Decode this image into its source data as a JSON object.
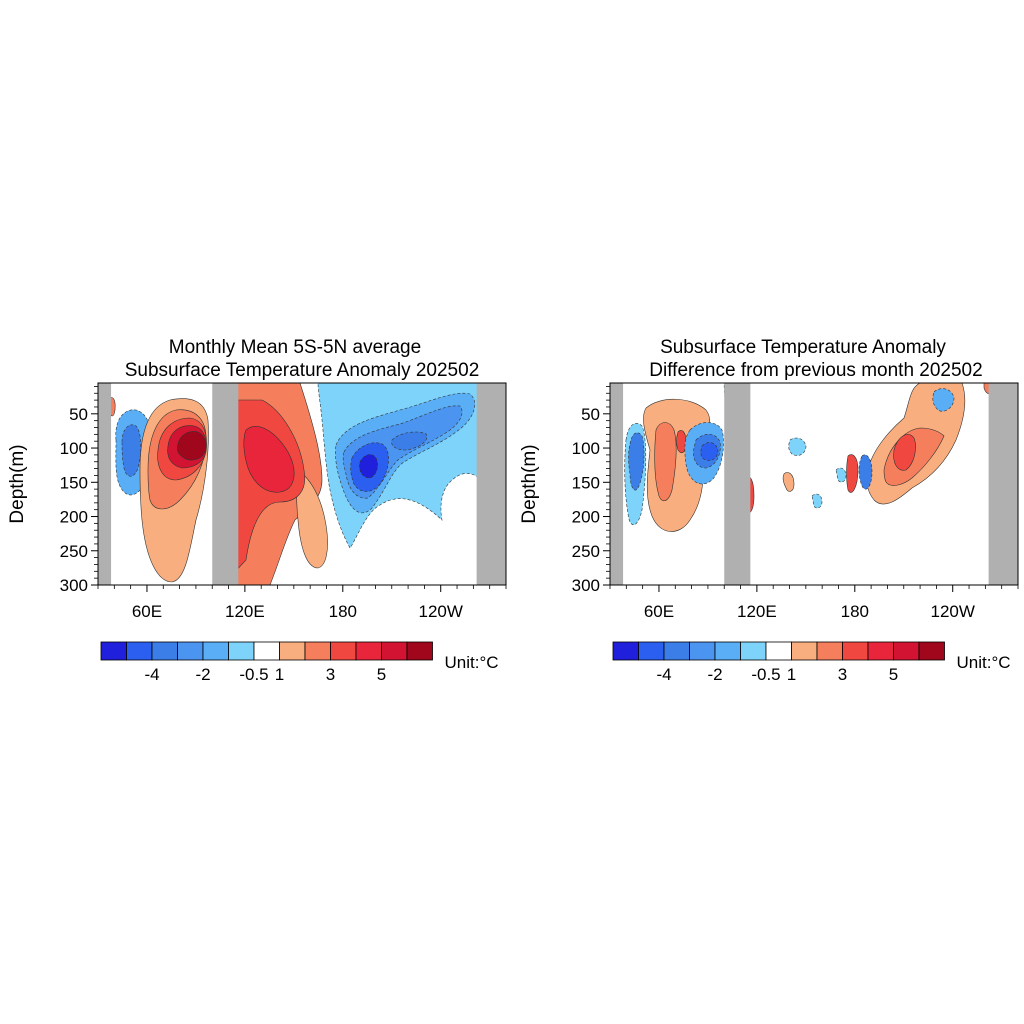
{
  "chart_data": [
    {
      "type": "heatmap",
      "title": "Monthly Mean 5S-5N average",
      "subtitle": "Subsurface Temperature Anomaly 202502",
      "xlabel": "",
      "ylabel": "Depth(m)",
      "x_ticks": [
        "60E",
        "120E",
        "180",
        "120W"
      ],
      "x_tick_values": [
        60,
        120,
        180,
        240
      ],
      "xlim": [
        30,
        280
      ],
      "y_ticks": [
        "50",
        "100",
        "150",
        "200",
        "250",
        "300"
      ],
      "y_tick_values": [
        50,
        100,
        150,
        200,
        250,
        300
      ],
      "ylim": [
        300,
        5
      ],
      "land_masks": [
        [
          30,
          38
        ],
        [
          100,
          116
        ],
        [
          262,
          280
        ]
      ],
      "features": [
        {
          "kind": "warm",
          "level": 5,
          "lon": 100,
          "depth": 105,
          "rx": 14,
          "ry": 20
        },
        {
          "kind": "warm",
          "level": 4,
          "lon": 140,
          "depth": 130,
          "rx": 14,
          "ry": 38
        },
        {
          "kind": "cool",
          "level": -4,
          "lon": 197,
          "depth": 135,
          "rx": 8,
          "ry": 30
        },
        {
          "kind": "cool",
          "level": -2,
          "lon": 57,
          "depth": 110,
          "rx": 6,
          "ry": 30
        }
      ],
      "colorbar": {
        "unit_label": "Unit:°C",
        "labels": [
          "-4",
          "-2",
          "-0.5",
          "1",
          "3",
          "5"
        ],
        "colors": [
          "#1f1fdc",
          "#2b5ff0",
          "#3c7ee8",
          "#4b94f0",
          "#5aaef5",
          "#7dd3fa",
          "#ffffff",
          "#f8ae7e",
          "#f57f5d",
          "#f04840",
          "#e8253a",
          "#d21432",
          "#a0061c"
        ]
      }
    },
    {
      "type": "heatmap",
      "title": "Subsurface Temperature Anomaly",
      "subtitle": "Difference from previous month 202502",
      "xlabel": "",
      "ylabel": "Depth(m)",
      "x_ticks": [
        "60E",
        "120E",
        "180",
        "120W"
      ],
      "x_tick_values": [
        60,
        120,
        180,
        240
      ],
      "xlim": [
        30,
        280
      ],
      "y_ticks": [
        "50",
        "100",
        "150",
        "200",
        "250",
        "300"
      ],
      "y_tick_values": [
        50,
        100,
        150,
        200,
        250,
        300
      ],
      "ylim": [
        300,
        5
      ],
      "land_masks": [
        [
          30,
          38
        ],
        [
          100,
          116
        ],
        [
          262,
          280
        ]
      ],
      "features": [
        {
          "kind": "cool",
          "level": -2,
          "lon": 47,
          "depth": 130,
          "rx": 4,
          "ry": 40
        },
        {
          "kind": "warm",
          "level": 1,
          "lon": 70,
          "depth": 120,
          "rx": 8,
          "ry": 50
        },
        {
          "kind": "cool",
          "level": -2,
          "lon": 92,
          "depth": 125,
          "rx": 8,
          "ry": 20
        },
        {
          "kind": "warm",
          "level": 3,
          "lon": 225,
          "depth": 110,
          "rx": 8,
          "ry": 25
        }
      ],
      "colorbar": {
        "unit_label": "Unit:°C",
        "labels": [
          "-4",
          "-2",
          "-0.5",
          "1",
          "3",
          "5"
        ],
        "colors": [
          "#1f1fdc",
          "#2b5ff0",
          "#3c7ee8",
          "#4b94f0",
          "#5aaef5",
          "#7dd3fa",
          "#ffffff",
          "#f8ae7e",
          "#f57f5d",
          "#f04840",
          "#e8253a",
          "#d21432",
          "#a0061c"
        ]
      }
    }
  ]
}
